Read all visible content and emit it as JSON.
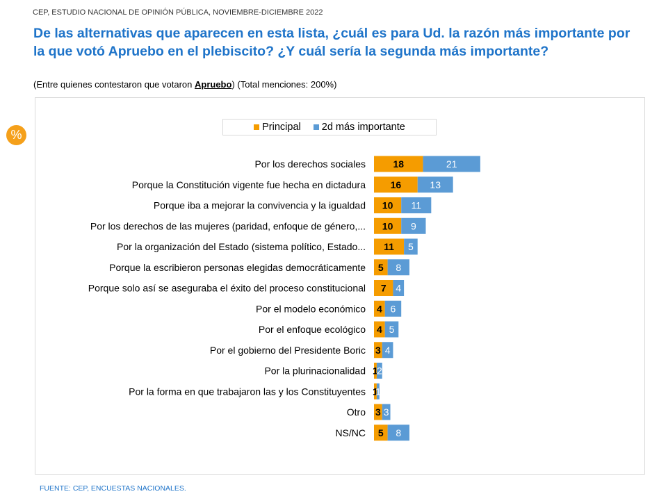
{
  "header": {
    "survey": "CEP, ESTUDIO NACIONAL DE OPINIÓN PÚBLICA, NOVIEMBRE-DICIEMBRE 2022"
  },
  "question": {
    "title": "De las alternativas que aparecen en esta lista, ¿cuál es para Ud. la razón más importante por la que votó Apruebo en el plebiscito? ¿Y cuál sería la segunda más importante?",
    "subtitle_pre": "(Entre quienes contestaron que votaron ",
    "subtitle_emph": "Apruebo",
    "subtitle_post": ") (Total menciones: 200%)"
  },
  "badge": {
    "symbol": "%"
  },
  "footer": {
    "source": "FUENTE: CEP, ENCUESTAS NACIONALES."
  },
  "colors": {
    "principal": "#f59c00",
    "segunda": "#5b9bd5",
    "title": "#1f74c9"
  },
  "chart_data": {
    "type": "bar",
    "orientation": "horizontal",
    "stacked": true,
    "legend_position": "top",
    "grid": false,
    "categories": [
      "Por los derechos sociales",
      "Porque la Constitución vigente fue hecha en dictadura",
      "Porque iba a mejorar la convivencia y la igualdad",
      "Por los derechos de las mujeres (paridad, enfoque de género,...",
      "Por la organización del Estado (sistema político, Estado...",
      "Porque la escribieron personas elegidas democráticamente",
      "Porque solo así se aseguraba el éxito del proceso constitucional",
      "Por el modelo económico",
      "Por el enfoque ecológico",
      "Por el gobierno del Presidente Boric",
      "Por la plurinacionalidad",
      "Por la forma en que trabajaron las y los Constituyentes",
      "Otro",
      "NS/NC"
    ],
    "series": [
      {
        "name": "Principal",
        "values": [
          18,
          16,
          10,
          10,
          11,
          5,
          7,
          4,
          4,
          3,
          1,
          1,
          3,
          5
        ]
      },
      {
        "name": "2d más importante",
        "values": [
          21,
          13,
          11,
          9,
          5,
          8,
          4,
          6,
          5,
          4,
          2,
          1,
          3,
          8
        ]
      }
    ]
  }
}
